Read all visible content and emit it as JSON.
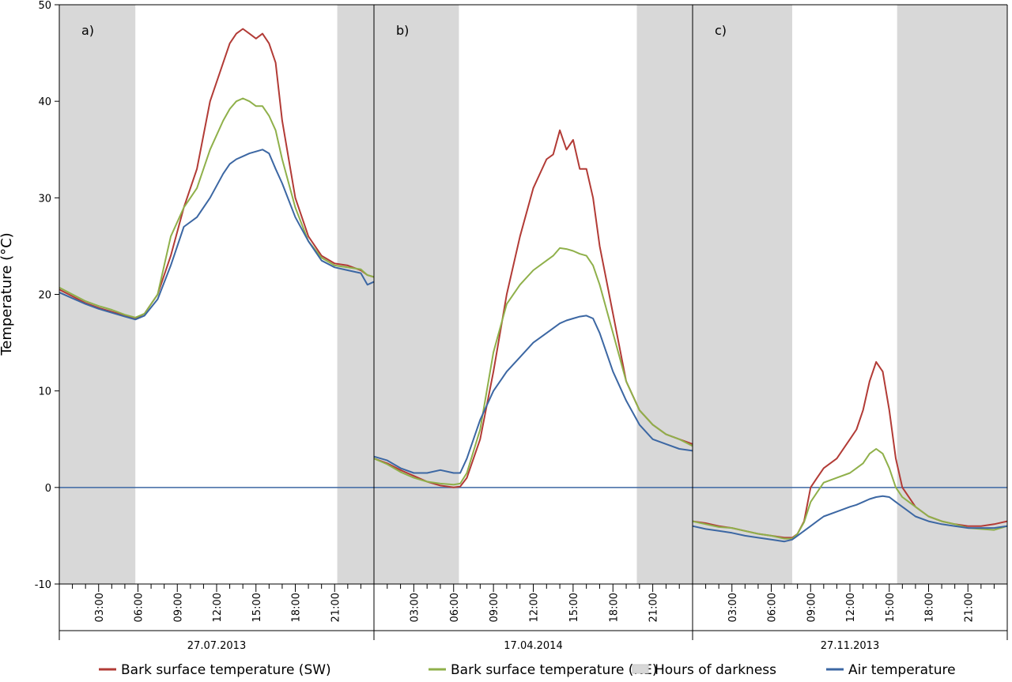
{
  "chart_data": {
    "type": "line",
    "ylabel": "Temperature (°C)",
    "ylim": [
      -10,
      50
    ],
    "yticks": [
      -10,
      0,
      10,
      20,
      30,
      40,
      50
    ],
    "xlim_hours": [
      0,
      24
    ],
    "x_tick_labels": [
      "03:00",
      "06:00",
      "09:00",
      "12:00",
      "15:00",
      "18:00",
      "21:00"
    ],
    "colors": {
      "bark_sw": "#b23b36",
      "bark_ne": "#8fb04a",
      "air": "#3c67a3",
      "darkness": "#d8d8d8",
      "zero_line": "#3c67a3"
    },
    "legend": [
      {
        "key": "bark_sw",
        "label": "Bark surface temperature (SW)",
        "kind": "line"
      },
      {
        "key": "bark_ne",
        "label": "Bark surface temperature (NE)",
        "kind": "line"
      },
      {
        "key": "darkness",
        "label": "Hours of darkness",
        "kind": "box"
      },
      {
        "key": "air",
        "label": "Air temperature",
        "kind": "line"
      }
    ],
    "panels": [
      {
        "label": "a)",
        "date": "27.07.2013",
        "darkness_hours": [
          [
            0,
            5.8
          ],
          [
            21.2,
            24
          ]
        ],
        "series": [
          {
            "key": "bark_sw",
            "x": [
              0,
              1,
              2,
              3,
              4,
              5,
              5.8,
              6.5,
              7.5,
              8.5,
              9.5,
              10.5,
              11.5,
              12.5,
              13,
              13.5,
              14,
              14.5,
              15,
              15.5,
              16,
              16.5,
              17,
              18,
              19,
              20,
              21,
              22,
              23,
              23.5,
              24
            ],
            "y": [
              20.5,
              19.8,
              19.1,
              18.6,
              18.2,
              17.8,
              17.5,
              18,
              20,
              24,
              29,
              33,
              40,
              44,
              46,
              47,
              47.5,
              47,
              46.5,
              47,
              46,
              44,
              38,
              30,
              26,
              24,
              23.2,
              23,
              22.5,
              22,
              21.8
            ]
          },
          {
            "key": "bark_ne",
            "x": [
              0,
              1,
              2,
              3,
              4,
              5,
              5.8,
              6.5,
              7.5,
              8.5,
              9.5,
              10.5,
              11.5,
              12.5,
              13,
              13.5,
              14,
              14.5,
              15,
              15.5,
              16,
              16.5,
              17,
              18,
              19,
              20,
              21,
              22,
              23,
              23.5,
              24
            ],
            "y": [
              20.7,
              20,
              19.3,
              18.8,
              18.4,
              17.9,
              17.6,
              18,
              20,
              26,
              29,
              31,
              35,
              38,
              39.2,
              40,
              40.3,
              40,
              39.5,
              39.5,
              38.5,
              37,
              34,
              29,
              25.5,
              23.8,
              23,
              22.8,
              22.6,
              22,
              21.8
            ]
          },
          {
            "key": "air",
            "x": [
              0,
              1,
              2,
              3,
              4,
              5,
              5.8,
              6.5,
              7.5,
              8.5,
              9.5,
              10.5,
              11.5,
              12.5,
              13,
              13.5,
              14,
              14.5,
              15,
              15.5,
              16,
              16.5,
              17,
              18,
              19,
              20,
              21,
              22,
              23,
              23.5,
              24
            ],
            "y": [
              20.2,
              19.6,
              19,
              18.5,
              18.1,
              17.7,
              17.4,
              17.8,
              19.5,
              23,
              27,
              28,
              30,
              32.5,
              33.5,
              34,
              34.3,
              34.6,
              34.8,
              35,
              34.6,
              33,
              31.5,
              28,
              25.5,
              23.5,
              22.8,
              22.5,
              22.2,
              21,
              21.3
            ]
          }
        ]
      },
      {
        "label": "b)",
        "date": "17.04.2014",
        "darkness_hours": [
          [
            0,
            6.4
          ],
          [
            19.8,
            24
          ]
        ],
        "series": [
          {
            "key": "bark_sw",
            "x": [
              0,
              1,
              2,
              3,
              4,
              5,
              6,
              6.5,
              7,
              8,
              9,
              10,
              11,
              12,
              13,
              13.5,
              14,
              14.5,
              15,
              15.5,
              16,
              16.5,
              17,
              18,
              19,
              20,
              21,
              22,
              23,
              24
            ],
            "y": [
              3,
              2.5,
              1.8,
              1.2,
              0.6,
              0.2,
              0,
              0.1,
              1,
              5,
              12,
              20,
              26,
              31,
              34,
              34.5,
              37,
              35,
              36,
              33,
              33,
              30,
              25,
              18,
              11,
              8,
              6.5,
              5.5,
              5,
              4.5
            ]
          },
          {
            "key": "bark_ne",
            "x": [
              0,
              1,
              2,
              3,
              4,
              5,
              6,
              6.5,
              7,
              8,
              9,
              10,
              11,
              12,
              13,
              13.5,
              14,
              14.5,
              15,
              15.5,
              16,
              16.5,
              17,
              18,
              19,
              20,
              21,
              22,
              23,
              24
            ],
            "y": [
              3,
              2.4,
              1.6,
              1,
              0.6,
              0.4,
              0.3,
              0.4,
              1.5,
              6,
              14,
              19,
              21,
              22.5,
              23.5,
              24,
              24.8,
              24.7,
              24.5,
              24.2,
              24,
              23,
              21,
              16,
              11,
              8,
              6.5,
              5.5,
              5,
              4.3
            ]
          },
          {
            "key": "air",
            "x": [
              0,
              1,
              2,
              3,
              4,
              5,
              6,
              6.5,
              7,
              8,
              9,
              10,
              11,
              12,
              13,
              13.5,
              14,
              14.5,
              15,
              15.5,
              16,
              16.5,
              17,
              18,
              19,
              20,
              21,
              22,
              23,
              24
            ],
            "y": [
              3.2,
              2.8,
              2,
              1.5,
              1.5,
              1.8,
              1.5,
              1.5,
              3,
              7,
              10,
              12,
              13.5,
              15,
              16,
              16.5,
              17,
              17.3,
              17.5,
              17.7,
              17.8,
              17.5,
              16,
              12,
              9,
              6.5,
              5,
              4.5,
              4,
              3.8
            ]
          }
        ]
      },
      {
        "label": "c)",
        "date": "27.11.2013",
        "darkness_hours": [
          [
            0,
            7.6
          ],
          [
            15.6,
            24
          ]
        ],
        "series": [
          {
            "key": "bark_sw",
            "x": [
              0,
              1,
              2,
              3,
              4,
              5,
              6,
              7,
              7.6,
              8,
              8.5,
              9,
              9.5,
              10,
              11,
              12,
              12.5,
              13,
              13.5,
              14,
              14.5,
              15,
              15.5,
              16,
              17,
              18,
              19,
              20,
              21,
              22,
              23,
              24
            ],
            "y": [
              -3.5,
              -3.7,
              -4,
              -4.2,
              -4.5,
              -4.8,
              -5,
              -5.2,
              -5.2,
              -4.8,
              -3.5,
              0,
              1,
              2,
              3,
              5,
              6,
              8,
              11,
              13,
              12,
              8,
              3,
              0,
              -2,
              -3,
              -3.5,
              -3.8,
              -4,
              -4,
              -3.8,
              -3.5
            ]
          },
          {
            "key": "bark_ne",
            "x": [
              0,
              1,
              2,
              3,
              4,
              5,
              6,
              7,
              7.6,
              8,
              8.5,
              9,
              9.5,
              10,
              11,
              12,
              12.5,
              13,
              13.5,
              14,
              14.5,
              15,
              15.5,
              16,
              17,
              18,
              19,
              20,
              21,
              22,
              23,
              24
            ],
            "y": [
              -3.5,
              -3.8,
              -4.1,
              -4.2,
              -4.5,
              -4.8,
              -5,
              -5.3,
              -5.3,
              -4.8,
              -3.6,
              -1.5,
              -0.5,
              0.5,
              1,
              1.5,
              2,
              2.5,
              3.5,
              4,
              3.5,
              2,
              0,
              -1,
              -2,
              -3,
              -3.5,
              -3.8,
              -4.2,
              -4.3,
              -4.4,
              -4
            ]
          },
          {
            "key": "air",
            "x": [
              0,
              1,
              2,
              3,
              4,
              5,
              6,
              7,
              7.6,
              8,
              8.5,
              9,
              9.5,
              10,
              11,
              12,
              12.5,
              13,
              13.5,
              14,
              14.5,
              15,
              15.5,
              16,
              17,
              18,
              19,
              20,
              21,
              22,
              23,
              24
            ],
            "y": [
              -4,
              -4.3,
              -4.5,
              -4.7,
              -5,
              -5.2,
              -5.4,
              -5.6,
              -5.4,
              -5,
              -4.5,
              -4,
              -3.5,
              -3,
              -2.5,
              -2,
              -1.8,
              -1.5,
              -1.2,
              -1,
              -0.9,
              -1,
              -1.5,
              -2,
              -3,
              -3.5,
              -3.8,
              -4,
              -4.2,
              -4.2,
              -4.2,
              -4
            ]
          }
        ]
      }
    ]
  }
}
